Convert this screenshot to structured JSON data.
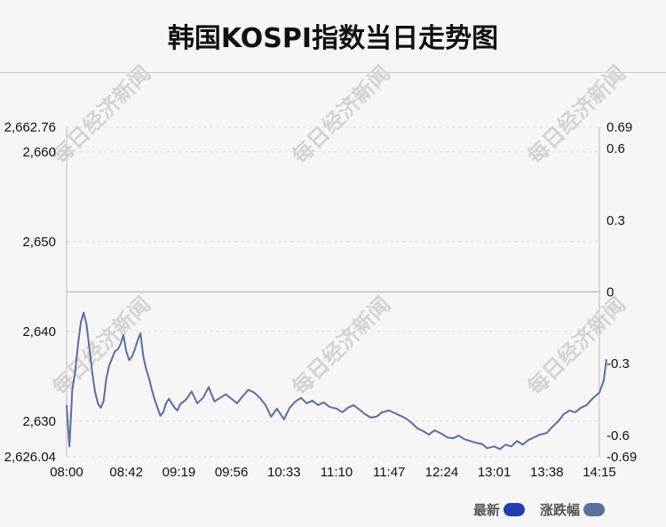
{
  "title": "韩国KOSPI指数当日走势图",
  "watermark_text": "每日经济新闻",
  "legend": [
    {
      "label": "最新",
      "color": "#1f3fae"
    },
    {
      "label": "涨跌幅",
      "color": "#5b6f9e"
    }
  ],
  "chart_data": {
    "type": "line",
    "x_ticks": [
      "08:00",
      "08:42",
      "09:19",
      "09:56",
      "10:33",
      "11:10",
      "11:47",
      "12:24",
      "13:01",
      "13:38",
      "14:15"
    ],
    "y_left_ticks": [
      "2,662.76",
      "2,660",
      "2,650",
      "2,640",
      "2,630",
      "2,626.04"
    ],
    "y_right_ticks": [
      "0.69",
      "0.6",
      "0.3",
      "0",
      "-0.3",
      "-0.6",
      "-0.69"
    ],
    "ylim": [
      2626.04,
      2662.76
    ],
    "y_right_lim": [
      -0.69,
      0.69
    ],
    "reference_value": 2644.4,
    "grid": true,
    "line_color": "#5b6f9e",
    "series": [
      {
        "name": "最新",
        "x": [
          "08:00",
          "08:02",
          "08:04",
          "08:06",
          "08:08",
          "08:10",
          "08:12",
          "08:14",
          "08:16",
          "08:18",
          "08:20",
          "08:22",
          "08:24",
          "08:26",
          "08:28",
          "08:30",
          "08:32",
          "08:34",
          "08:36",
          "08:38",
          "08:40",
          "08:42",
          "08:44",
          "08:46",
          "08:48",
          "08:50",
          "08:52",
          "08:54",
          "08:56",
          "08:58",
          "09:00",
          "09:02",
          "09:04",
          "09:06",
          "09:08",
          "09:10",
          "09:12",
          "09:14",
          "09:16",
          "09:18",
          "09:20",
          "09:24",
          "09:28",
          "09:32",
          "09:36",
          "09:40",
          "09:44",
          "09:48",
          "09:52",
          "09:56",
          "10:00",
          "10:04",
          "10:08",
          "10:12",
          "10:16",
          "10:20",
          "10:24",
          "10:28",
          "10:33",
          "10:37",
          "10:41",
          "10:45",
          "10:49",
          "10:53",
          "10:57",
          "11:01",
          "11:05",
          "11:10",
          "11:14",
          "11:18",
          "11:22",
          "11:26",
          "11:30",
          "11:34",
          "11:38",
          "11:42",
          "11:47",
          "11:51",
          "11:55",
          "11:59",
          "12:03",
          "12:07",
          "12:11",
          "12:15",
          "12:19",
          "12:24",
          "12:28",
          "12:32",
          "12:36",
          "12:40",
          "12:44",
          "12:48",
          "12:52",
          "12:56",
          "13:01",
          "13:05",
          "13:09",
          "13:13",
          "13:17",
          "13:21",
          "13:25",
          "13:29",
          "13:33",
          "13:38",
          "13:42",
          "13:46",
          "13:50",
          "13:54",
          "13:58",
          "14:02",
          "14:06",
          "14:10",
          "14:15",
          "14:18",
          "14:20"
        ],
        "values": [
          2631.8,
          2627.2,
          2633.5,
          2635.5,
          2638.5,
          2641.0,
          2642.1,
          2640.8,
          2638.2,
          2635.5,
          2633.3,
          2632.0,
          2631.5,
          2632.2,
          2634.8,
          2636.2,
          2637.0,
          2637.8,
          2638.0,
          2638.6,
          2639.6,
          2637.8,
          2636.8,
          2637.2,
          2638.0,
          2639.0,
          2639.8,
          2637.2,
          2635.8,
          2634.8,
          2633.5,
          2632.4,
          2631.5,
          2630.6,
          2631.0,
          2632.0,
          2632.5,
          2632.0,
          2631.5,
          2631.2,
          2631.9,
          2632.4,
          2633.3,
          2632.0,
          2632.6,
          2633.8,
          2632.2,
          2632.6,
          2633.0,
          2632.5,
          2632.0,
          2632.8,
          2633.5,
          2633.2,
          2632.6,
          2631.8,
          2630.5,
          2631.4,
          2630.2,
          2631.5,
          2632.2,
          2632.6,
          2632.0,
          2632.3,
          2631.8,
          2632.1,
          2631.6,
          2631.4,
          2631.0,
          2631.5,
          2631.8,
          2631.3,
          2630.8,
          2630.4,
          2630.5,
          2631.0,
          2631.2,
          2630.9,
          2630.6,
          2630.3,
          2629.8,
          2629.2,
          2628.9,
          2628.5,
          2629.0,
          2628.6,
          2628.2,
          2628.1,
          2628.4,
          2628.0,
          2627.8,
          2627.6,
          2627.5,
          2627.0,
          2627.2,
          2626.9,
          2627.4,
          2627.2,
          2627.8,
          2627.4,
          2627.9,
          2628.2,
          2628.5,
          2628.7,
          2629.4,
          2630.0,
          2630.8,
          2631.2,
          2631.0,
          2631.5,
          2631.8,
          2632.5,
          2633.2,
          2634.5,
          2636.9
        ]
      }
    ]
  }
}
